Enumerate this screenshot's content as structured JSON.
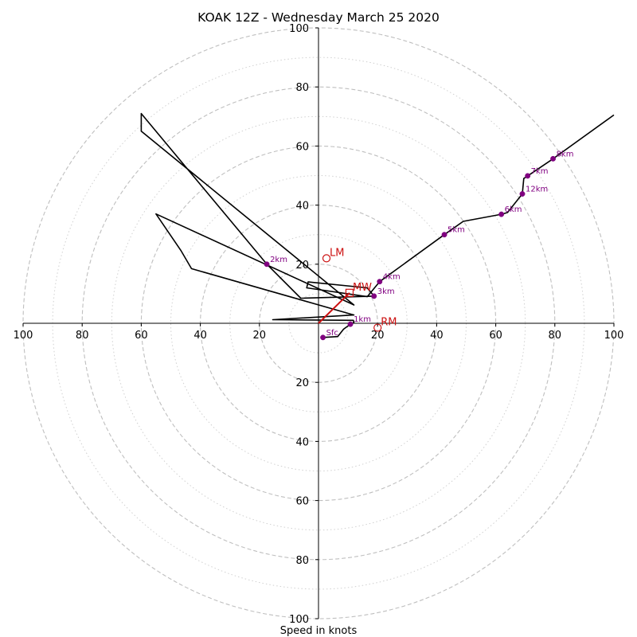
{
  "chart_data": {
    "type": "hodograph",
    "title": "KOAK 12Z - Wednesday March 25 2020",
    "xlabel": "Speed in knots",
    "ylabel": "",
    "range": [
      -100,
      100
    ],
    "rings_dashed": [
      20,
      40,
      60,
      80,
      100
    ],
    "rings_dotted": [
      10,
      30,
      50,
      70,
      90
    ],
    "axis_ticks": [
      20,
      40,
      60,
      80,
      100
    ],
    "trace": [
      {
        "u": 1.5,
        "v": -4.8
      },
      {
        "u": 6.5,
        "v": -4.5
      },
      {
        "u": 8.5,
        "v": -2.0
      },
      {
        "u": 10.8,
        "v": -0.3
      },
      {
        "u": 12.0,
        "v": 0.3
      },
      {
        "u": 11.8,
        "v": 1.0
      },
      {
        "u": -15.5,
        "v": 1.2
      },
      {
        "u": 12.0,
        "v": 2.8
      },
      {
        "u": -43.0,
        "v": 18.5
      },
      {
        "u": -46.5,
        "v": 24.5
      },
      {
        "u": -55.0,
        "v": 37.0
      },
      {
        "u": 12.0,
        "v": 6.2
      },
      {
        "u": -60.0,
        "v": 65.0
      },
      {
        "u": -60.0,
        "v": 71.0
      },
      {
        "u": -17.5,
        "v": 20.0
      },
      {
        "u": -6.0,
        "v": 8.5
      },
      {
        "u": 18.8,
        "v": 9.2
      },
      {
        "u": 16.5,
        "v": 12.0
      },
      {
        "u": -3.5,
        "v": 14.0
      },
      {
        "u": -4.0,
        "v": 12.0
      },
      {
        "u": 16.5,
        "v": 9.0
      },
      {
        "u": 20.7,
        "v": 14.1
      },
      {
        "u": 42.6,
        "v": 30.0
      },
      {
        "u": 49.0,
        "v": 34.5
      },
      {
        "u": 61.9,
        "v": 36.9
      },
      {
        "u": 64.0,
        "v": 37.5
      },
      {
        "u": 69.0,
        "v": 43.8
      },
      {
        "u": 69.5,
        "v": 49.0
      },
      {
        "u": 70.8,
        "v": 49.9
      },
      {
        "u": 79.4,
        "v": 55.7
      },
      {
        "u": 100.0,
        "v": 70.5
      }
    ],
    "height_markers": [
      {
        "label": "Sfc",
        "u": 1.5,
        "v": -4.8
      },
      {
        "label": "1km",
        "u": 10.8,
        "v": -0.3
      },
      {
        "label": "2km",
        "u": -17.5,
        "v": 20.0
      },
      {
        "label": "3km",
        "u": 18.8,
        "v": 9.2
      },
      {
        "label": "4km",
        "u": 20.7,
        "v": 14.1
      },
      {
        "label": "5km",
        "u": 42.6,
        "v": 30.0
      },
      {
        "label": "6km",
        "u": 61.9,
        "v": 36.9
      },
      {
        "label": "7km",
        "u": 70.8,
        "v": 49.9
      },
      {
        "label": "8km",
        "u": 79.4,
        "v": 55.7
      },
      {
        "label": "12km",
        "u": 69.0,
        "v": 43.8
      }
    ],
    "storm_motion": [
      {
        "label": "LM",
        "u": 2.7,
        "v": 22.0
      },
      {
        "label": "MW",
        "u": 10.5,
        "v": 10.3
      },
      {
        "label": "RM",
        "u": 20.0,
        "v": -1.5
      }
    ],
    "mean_wind_vector": {
      "from": {
        "u": 0,
        "v": 0
      },
      "to": {
        "u": 10.5,
        "v": 10.3
      }
    },
    "colors": {
      "trace": "#000000",
      "markers": "#800080",
      "storm_motion": "#cc1111",
      "rings": "#bfbfbf"
    }
  }
}
